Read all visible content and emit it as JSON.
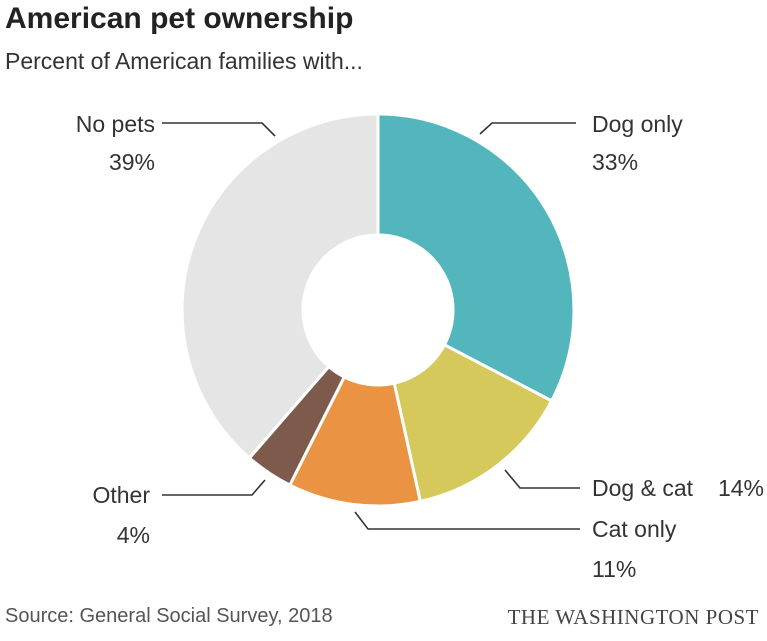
{
  "title": "American pet ownership",
  "subtitle": "Percent of American families with...",
  "source": "Source: General Social Survey, 2018",
  "credit": "THE WASHINGTON POST",
  "chart_data": {
    "type": "pie",
    "style": "donut",
    "unit": "%",
    "slices": [
      {
        "label": "Dog only",
        "value": 33,
        "display": "33%",
        "color": "#53b6bd"
      },
      {
        "label": "Dog & cat",
        "value": 14,
        "display": "14%",
        "color": "#d4c95a"
      },
      {
        "label": "Cat only",
        "value": 11,
        "display": "11%",
        "color": "#ea9342"
      },
      {
        "label": "Other",
        "value": 4,
        "display": "4%",
        "color": "#7d5a4b"
      },
      {
        "label": "No pets",
        "value": 39,
        "display": "39%",
        "color": "#e5e5e5"
      }
    ],
    "leader_color": "#333333"
  }
}
